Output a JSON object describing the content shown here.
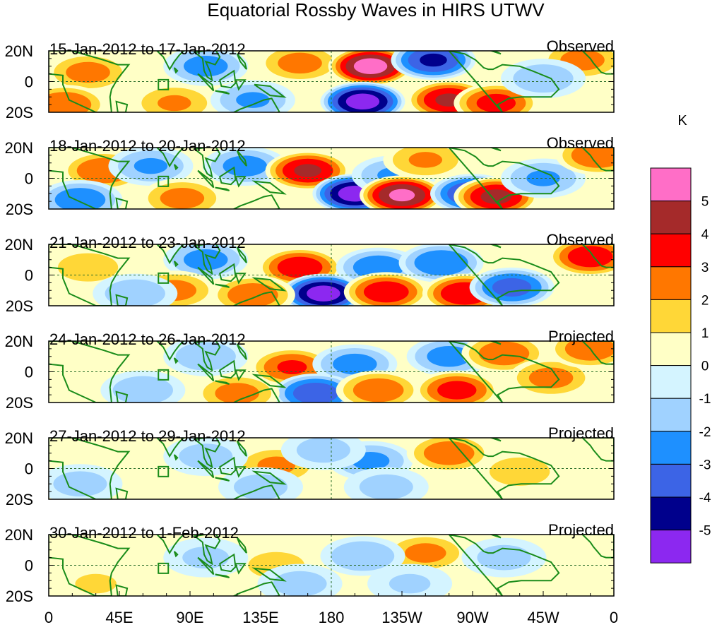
{
  "chart_data": {
    "type": "heatmap",
    "title": "Equatorial Rossby Waves in HIRS UTWV",
    "units": "K",
    "lat_tick_labels": [
      "20N",
      "0",
      "20S"
    ],
    "lon_tick_labels": [
      "0",
      "45E",
      "90E",
      "135E",
      "180",
      "135W",
      "90W",
      "45W",
      "0"
    ],
    "lon_range": [
      0,
      360
    ],
    "lat_range": [
      -20,
      20
    ],
    "legend": {
      "position": "right",
      "levels": [
        "5",
        "4",
        "3",
        "2",
        "1",
        "0",
        "-1",
        "-2",
        "-3",
        "-4",
        "-5"
      ],
      "colors": [
        "#ff6ec7",
        "#a52a2a",
        "#ff0000",
        "#ff7700",
        "#ffd737",
        "#ffffc6",
        "#d4f4ff",
        "#a0d2ff",
        "#1e90ff",
        "#3c64e6",
        "#00008c",
        "#8c28f0"
      ]
    },
    "panels": [
      {
        "date_range": "15-Jan-2012 to 17-Jan-2012",
        "status": "Observed",
        "anomalies": [
          {
            "lon": 25,
            "lat": 6,
            "value": 2.5
          },
          {
            "lon": 100,
            "lat": 10,
            "value": -2.5
          },
          {
            "lon": 160,
            "lat": 12,
            "value": 2.5
          },
          {
            "lon": 205,
            "lat": 10,
            "value": 5.5
          },
          {
            "lon": 245,
            "lat": 14,
            "value": -4.2
          },
          {
            "lon": 200,
            "lat": -13,
            "value": -5.5
          },
          {
            "lon": 255,
            "lat": -12,
            "value": 4.2
          },
          {
            "lon": 285,
            "lat": -14,
            "value": 3.5
          },
          {
            "lon": 80,
            "lat": -14,
            "value": 2.2
          },
          {
            "lon": 130,
            "lat": -12,
            "value": -2.2
          },
          {
            "lon": 340,
            "lat": 14,
            "value": 2.5
          },
          {
            "lon": 10,
            "lat": -15,
            "value": 3.0
          },
          {
            "lon": 315,
            "lat": 2,
            "value": -1.8
          }
        ]
      },
      {
        "date_range": "18-Jan-2012 to 20-Jan-2012",
        "status": "Observed",
        "anomalies": [
          {
            "lon": 35,
            "lat": 5,
            "value": 3.0
          },
          {
            "lon": 65,
            "lat": 8,
            "value": -2.2
          },
          {
            "lon": 125,
            "lat": 8,
            "value": -2.5
          },
          {
            "lon": 165,
            "lat": 5,
            "value": 4.2
          },
          {
            "lon": 195,
            "lat": -10,
            "value": -5.5
          },
          {
            "lon": 220,
            "lat": 2,
            "value": -2.2
          },
          {
            "lon": 240,
            "lat": 12,
            "value": 2.2
          },
          {
            "lon": 225,
            "lat": -11,
            "value": 5.2
          },
          {
            "lon": 270,
            "lat": -10,
            "value": -4.2
          },
          {
            "lon": 285,
            "lat": -12,
            "value": 4.3
          },
          {
            "lon": 315,
            "lat": 0,
            "value": -2.2
          },
          {
            "lon": 350,
            "lat": 15,
            "value": 3.0
          },
          {
            "lon": 85,
            "lat": -13,
            "value": 2.5
          },
          {
            "lon": 20,
            "lat": -14,
            "value": -2.8
          }
        ]
      },
      {
        "date_range": "21-Jan-2012 to 23-Jan-2012",
        "status": "Observed",
        "anomalies": [
          {
            "lon": 25,
            "lat": 5,
            "value": 1.8
          },
          {
            "lon": 100,
            "lat": 10,
            "value": -2.5
          },
          {
            "lon": 160,
            "lat": 5,
            "value": 3.8
          },
          {
            "lon": 175,
            "lat": -12,
            "value": -5.5
          },
          {
            "lon": 210,
            "lat": 5,
            "value": -2.8
          },
          {
            "lon": 215,
            "lat": -11,
            "value": 3.8
          },
          {
            "lon": 250,
            "lat": 8,
            "value": -3.0
          },
          {
            "lon": 265,
            "lat": -12,
            "value": 4.0
          },
          {
            "lon": 295,
            "lat": -8,
            "value": -3.5
          },
          {
            "lon": 345,
            "lat": 12,
            "value": 3.8
          },
          {
            "lon": 80,
            "lat": -10,
            "value": 2.5
          },
          {
            "lon": 130,
            "lat": -13,
            "value": 2.8
          },
          {
            "lon": 55,
            "lat": -12,
            "value": -1.8
          }
        ]
      },
      {
        "date_range": "24-Jan-2012 to 26-Jan-2012",
        "status": "Projected",
        "anomalies": [
          {
            "lon": 155,
            "lat": 3,
            "value": 3.2
          },
          {
            "lon": 195,
            "lat": 5,
            "value": -2.5
          },
          {
            "lon": 255,
            "lat": 10,
            "value": -2.5
          },
          {
            "lon": 290,
            "lat": 12,
            "value": 2.8
          },
          {
            "lon": 170,
            "lat": -14,
            "value": -3.8
          },
          {
            "lon": 210,
            "lat": -12,
            "value": 2.8
          },
          {
            "lon": 260,
            "lat": -12,
            "value": 3.5
          },
          {
            "lon": 320,
            "lat": -4,
            "value": 2.5
          },
          {
            "lon": 345,
            "lat": 15,
            "value": 2.8
          },
          {
            "lon": 60,
            "lat": -12,
            "value": -1.8
          },
          {
            "lon": 100,
            "lat": 10,
            "value": -1.8
          },
          {
            "lon": 120,
            "lat": -14,
            "value": 2.5
          }
        ]
      },
      {
        "date_range": "27-Jan-2012 to 29-Jan-2012",
        "status": "Projected",
        "anomalies": [
          {
            "lon": 145,
            "lat": 2,
            "value": 2.3
          },
          {
            "lon": 205,
            "lat": 5,
            "value": -2.3
          },
          {
            "lon": 255,
            "lat": 10,
            "value": 2.8
          },
          {
            "lon": 215,
            "lat": -12,
            "value": -1.5
          },
          {
            "lon": 300,
            "lat": -2,
            "value": 1.8
          },
          {
            "lon": 100,
            "lat": 8,
            "value": -1.5
          },
          {
            "lon": 20,
            "lat": -10,
            "value": -1.5
          },
          {
            "lon": 175,
            "lat": 12,
            "value": -1.5
          },
          {
            "lon": 135,
            "lat": -12,
            "value": -1.5
          }
        ]
      },
      {
        "date_range": "30-Jan-2012 to 1-Feb-2012",
        "status": "Projected",
        "anomalies": [
          {
            "lon": 240,
            "lat": 8,
            "value": 2.4
          },
          {
            "lon": 200,
            "lat": 6,
            "value": -2.0
          },
          {
            "lon": 290,
            "lat": 5,
            "value": -1.5
          },
          {
            "lon": 145,
            "lat": 0,
            "value": 1.6
          },
          {
            "lon": 100,
            "lat": 5,
            "value": -1.3
          },
          {
            "lon": 160,
            "lat": -12,
            "value": -1.5
          },
          {
            "lon": 30,
            "lat": -12,
            "value": 1.2
          },
          {
            "lon": 230,
            "lat": -12,
            "value": -1.2
          }
        ]
      }
    ]
  }
}
